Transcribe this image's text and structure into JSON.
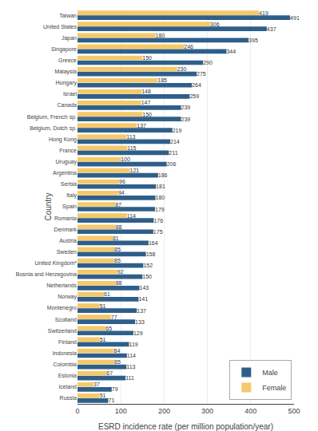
{
  "chart_data": {
    "type": "bar",
    "orientation": "horizontal",
    "categories": [
      "Russia",
      "Iceland",
      "Estonia",
      "Colombia",
      "Indonesia",
      "Finland",
      "Switzerland",
      "Scotland",
      "Montenegro",
      "Norway",
      "Netherlands",
      "Bosnia and Herzegovina",
      "United Kingdom*",
      "Sweden",
      "Austria",
      "Denmark",
      "Romania",
      "Spain",
      "Italy",
      "Serbia",
      "Argentina",
      "Uruguay",
      "France",
      "Hong Kong",
      "Belgium, Dutch sp.",
      "Belgium, French sp.",
      "Canada",
      "Israel",
      "Hungary",
      "Malaysia",
      "Greece",
      "Singapore",
      "Japan",
      "United States",
      "Taiwan"
    ],
    "series": [
      {
        "name": "Male",
        "color": "#2E5F8A",
        "values": [
          71,
          79,
          111,
          113,
          114,
          119,
          129,
          133,
          137,
          141,
          143,
          150,
          152,
          158,
          164,
          175,
          176,
          179,
          180,
          181,
          186,
          206,
          211,
          214,
          219,
          239,
          239,
          259,
          264,
          275,
          290,
          344,
          395,
          437,
          491
        ]
      },
      {
        "name": "Female",
        "color": "#F5C96A",
        "values": [
          51,
          37,
          67,
          85,
          84,
          51,
          65,
          77,
          51,
          61,
          88,
          92,
          85,
          85,
          81,
          88,
          114,
          87,
          94,
          96,
          121,
          100,
          115,
          113,
          137,
          150,
          147,
          148,
          185,
          230,
          150,
          246,
          180,
          306,
          419
        ]
      }
    ],
    "x_label": "ESRD incidence rate (per million population/year)",
    "y_label": "Country",
    "xlim": [
      0,
      500
    ],
    "xticks": [
      0,
      100,
      200,
      300,
      400,
      500
    ],
    "grid": true,
    "legend": "lower right",
    "data_labels": true
  }
}
